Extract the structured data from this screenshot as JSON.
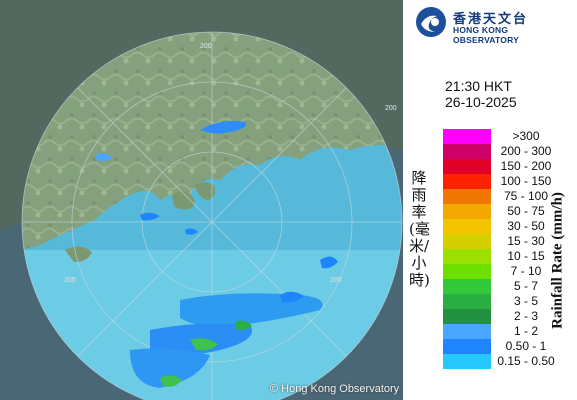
{
  "logo": {
    "chinese": "香港天文台",
    "english": "HONG KONG OBSERVATORY",
    "icon": "hko-logo-icon"
  },
  "map": {
    "range_ring_labels": [
      "200",
      "200",
      "200",
      "200"
    ],
    "copyright": "© Hong Kong Observatory",
    "land_color": "#6a8a5e",
    "sea_color": "#45b8d8",
    "outside_color": "#4f6f7f"
  },
  "timestamp": {
    "time": "21:30 HKT",
    "date": "26-10-2025"
  },
  "legend": {
    "title_zh": "降雨率(毫米/小時)",
    "title_en": "Rainfall Rate (mm/h)",
    "items": [
      {
        "label": ">300",
        "color": "#ff00ff"
      },
      {
        "label": "200 - 300",
        "color": "#cc0066"
      },
      {
        "label": "150 - 200",
        "color": "#e0002a"
      },
      {
        "label": "100 - 150",
        "color": "#ff2200"
      },
      {
        "label": "75 - 100",
        "color": "#f07800"
      },
      {
        "label": "50 - 75",
        "color": "#f3a800"
      },
      {
        "label": "30 - 50",
        "color": "#f3c400"
      },
      {
        "label": "15 - 30",
        "color": "#d6cf00"
      },
      {
        "label": "10 - 15",
        "color": "#9be000"
      },
      {
        "label": "7 - 10",
        "color": "#6ee000"
      },
      {
        "label": "5 - 7",
        "color": "#31c93a"
      },
      {
        "label": "3 - 5",
        "color": "#2aae42"
      },
      {
        "label": "2 - 3",
        "color": "#22913f"
      },
      {
        "label": "1 - 2",
        "color": "#4aa6ff"
      },
      {
        "label": "0.50 - 1",
        "color": "#1f85ff"
      },
      {
        "label": "0.15 - 0.50",
        "color": "#25c8ff"
      }
    ]
  }
}
